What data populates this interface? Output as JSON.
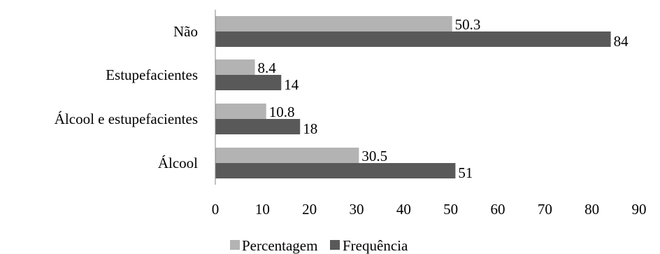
{
  "chart_data": {
    "type": "bar",
    "orientation": "horizontal",
    "categories": [
      "Álcool",
      "Álcool e estupefacientes",
      "Estupefacientes",
      "Não"
    ],
    "series": [
      {
        "name": "Percentagem",
        "values": [
          30.5,
          10.8,
          8.4,
          50.3
        ],
        "labels": [
          "30.5",
          "10.8",
          "8.4",
          "50.3"
        ],
        "color": "#b3b3b3"
      },
      {
        "name": "Frequência",
        "values": [
          51,
          18,
          14,
          84
        ],
        "labels": [
          "51",
          "18",
          "14",
          "84"
        ],
        "color": "#595959"
      }
    ],
    "xlim": [
      0,
      90
    ],
    "xticks": [
      "0",
      "10",
      "20",
      "30",
      "40",
      "50",
      "60",
      "70",
      "80",
      "90"
    ],
    "grid": false,
    "legend": "bottom",
    "axis_color": "#868686"
  }
}
